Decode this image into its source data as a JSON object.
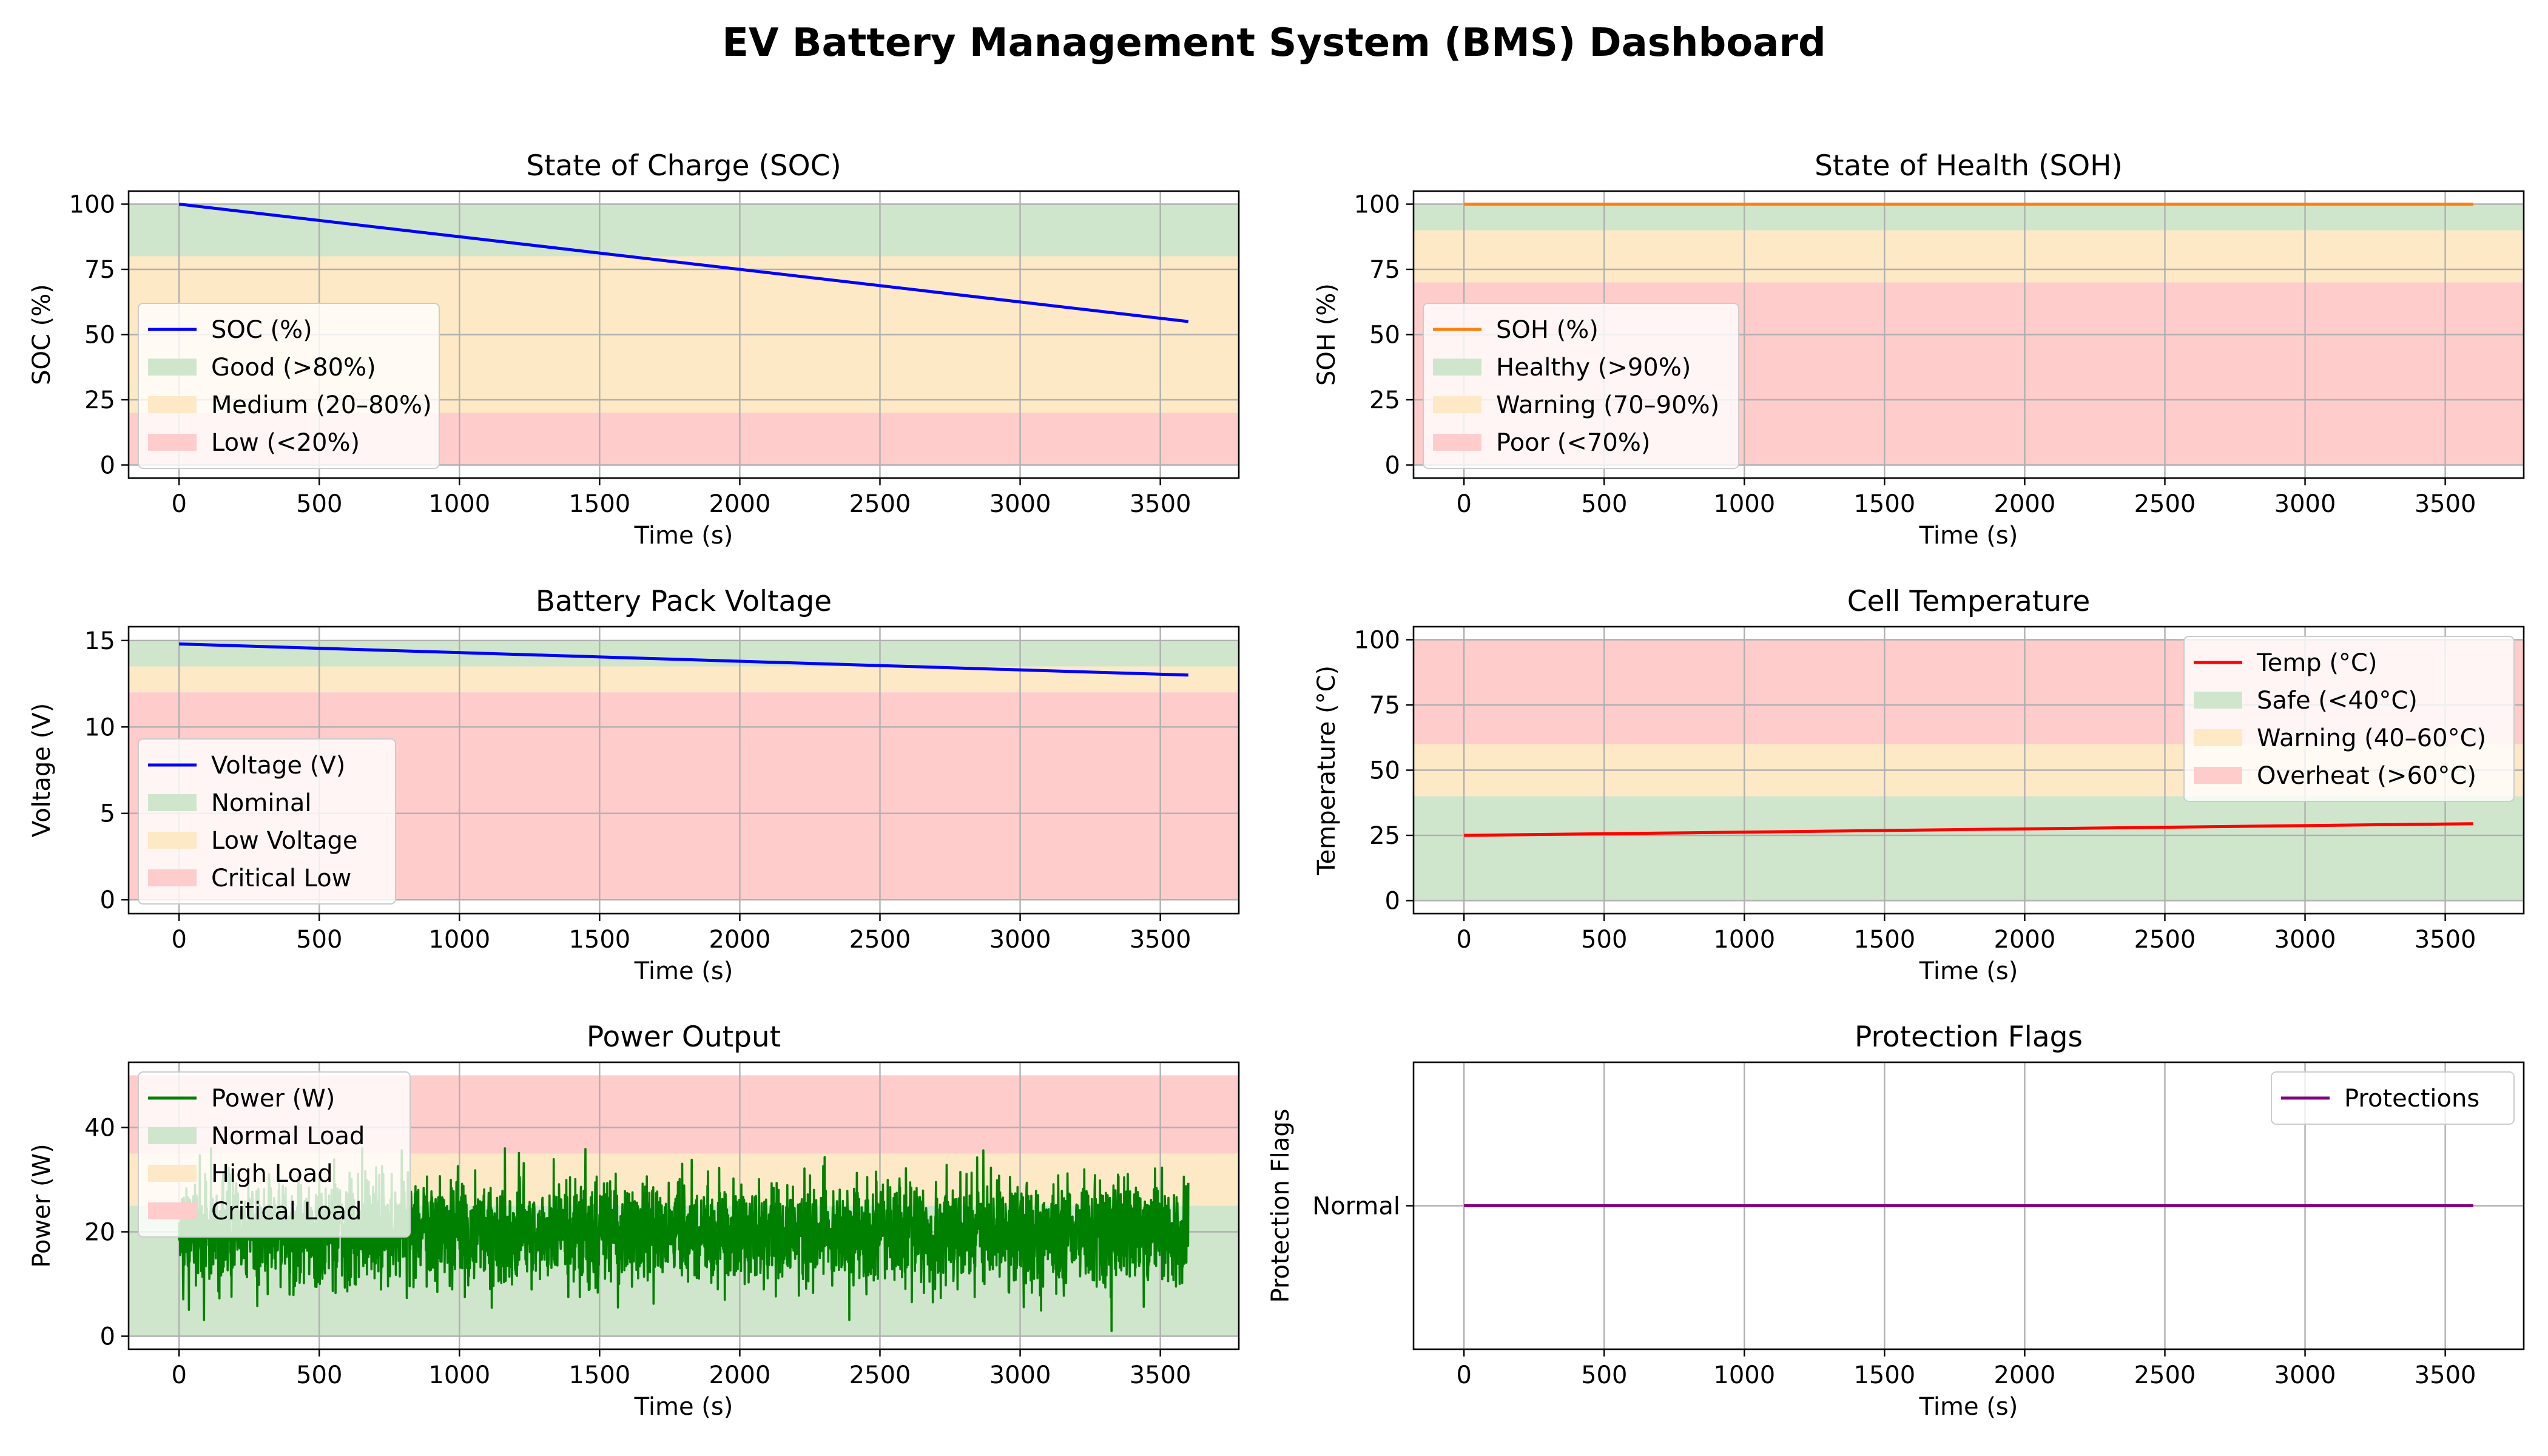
{
  "page": {
    "title": "EV Battery Management System (BMS) Dashboard"
  },
  "chart_data": [
    {
      "id": "soc",
      "type": "line",
      "title": "State of Charge (SOC)",
      "xlabel": "Time (s)",
      "ylabel": "SOC (%)",
      "xlim": [
        -180,
        3780
      ],
      "ylim": [
        -5,
        105
      ],
      "xticks": [
        0,
        500,
        1000,
        1500,
        2000,
        2500,
        3000,
        3500
      ],
      "yticks": [
        0,
        25,
        50,
        75,
        100
      ],
      "grid": true,
      "legend_position": "lower-left",
      "bands": [
        {
          "name": "Good (>80%)",
          "from": 80,
          "to": 100,
          "color": "#cfe6cc"
        },
        {
          "name": "Medium (20–80%)",
          "from": 20,
          "to": 80,
          "color": "#fde9c6"
        },
        {
          "name": "Low (<20%)",
          "from": 0,
          "to": 20,
          "color": "#ffcccc"
        }
      ],
      "series": [
        {
          "name": "SOC (%)",
          "color": "#0000ff",
          "style": "line",
          "x": [
            0,
            3600
          ],
          "y": [
            100,
            55
          ]
        }
      ]
    },
    {
      "id": "soh",
      "type": "line",
      "title": "State of Health (SOH)",
      "xlabel": "Time (s)",
      "ylabel": "SOH (%)",
      "xlim": [
        -180,
        3780
      ],
      "ylim": [
        -5,
        105
      ],
      "xticks": [
        0,
        500,
        1000,
        1500,
        2000,
        2500,
        3000,
        3500
      ],
      "yticks": [
        0,
        25,
        50,
        75,
        100
      ],
      "grid": true,
      "legend_position": "lower-left",
      "bands": [
        {
          "name": "Healthy (>90%)",
          "from": 90,
          "to": 100,
          "color": "#cfe6cc"
        },
        {
          "name": "Warning (70–90%)",
          "from": 70,
          "to": 90,
          "color": "#fde9c6"
        },
        {
          "name": "Poor (<70%)",
          "from": 0,
          "to": 70,
          "color": "#ffcccc"
        }
      ],
      "series": [
        {
          "name": "SOH (%)",
          "color": "#ff7f0e",
          "style": "line",
          "x": [
            0,
            3600
          ],
          "y": [
            100,
            100
          ]
        }
      ]
    },
    {
      "id": "voltage",
      "type": "line",
      "title": "Battery Pack Voltage",
      "xlabel": "Time (s)",
      "ylabel": "Voltage (V)",
      "xlim": [
        -180,
        3780
      ],
      "ylim": [
        -0.8,
        15.8
      ],
      "xticks": [
        0,
        500,
        1000,
        1500,
        2000,
        2500,
        3000,
        3500
      ],
      "yticks": [
        0,
        5,
        10,
        15
      ],
      "grid": true,
      "legend_position": "lower-left",
      "bands": [
        {
          "name": "Nominal",
          "from": 13.5,
          "to": 15,
          "color": "#cfe6cc"
        },
        {
          "name": "Low Voltage",
          "from": 12,
          "to": 13.5,
          "color": "#fde9c6"
        },
        {
          "name": "Critical Low",
          "from": 0,
          "to": 12,
          "color": "#ffcccc"
        }
      ],
      "series": [
        {
          "name": "Voltage (V)",
          "color": "#0000ff",
          "style": "line",
          "x": [
            0,
            3600
          ],
          "y": [
            14.8,
            13.0
          ]
        }
      ]
    },
    {
      "id": "temperature",
      "type": "line",
      "title": "Cell Temperature",
      "xlabel": "Time (s)",
      "ylabel": "Temperature (°C)",
      "xlim": [
        -180,
        3780
      ],
      "ylim": [
        -5,
        105
      ],
      "xticks": [
        0,
        500,
        1000,
        1500,
        2000,
        2500,
        3000,
        3500
      ],
      "yticks": [
        0,
        25,
        50,
        75,
        100
      ],
      "grid": true,
      "legend_position": "upper-right",
      "bands": [
        {
          "name": "Safe (<40°C)",
          "from": 0,
          "to": 40,
          "color": "#cfe6cc"
        },
        {
          "name": "Warning (40–60°C)",
          "from": 40,
          "to": 60,
          "color": "#fde9c6"
        },
        {
          "name": "Overheat (>60°C)",
          "from": 60,
          "to": 100,
          "color": "#ffcccc"
        }
      ],
      "series": [
        {
          "name": "Temp (°C)",
          "color": "#ff0000",
          "style": "line",
          "x": [
            0,
            3600
          ],
          "y": [
            25,
            29.5
          ]
        }
      ]
    },
    {
      "id": "power",
      "type": "line",
      "title": "Power Output",
      "xlabel": "Time (s)",
      "ylabel": "Power (W)",
      "xlim": [
        -180,
        3780
      ],
      "ylim": [
        -2.5,
        52.5
      ],
      "xticks": [
        0,
        500,
        1000,
        1500,
        2000,
        2500,
        3000,
        3500
      ],
      "yticks": [
        0,
        20,
        40
      ],
      "grid": true,
      "legend_position": "upper-left",
      "bands": [
        {
          "name": "Normal Load",
          "from": 0,
          "to": 25,
          "color": "#cfe6cc"
        },
        {
          "name": "High Load",
          "from": 25,
          "to": 35,
          "color": "#fde9c6"
        },
        {
          "name": "Critical Load",
          "from": 35,
          "to": 50,
          "color": "#ffcccc"
        }
      ],
      "series": [
        {
          "name": "Power (W)",
          "color": "#008000",
          "style": "noise",
          "x_range": [
            0,
            3600
          ],
          "mean": 20,
          "std": 5,
          "min": 1,
          "max": 36,
          "samples": 3600
        }
      ]
    },
    {
      "id": "protection",
      "type": "line",
      "title": "Protection Flags",
      "xlabel": "Time (s)",
      "ylabel": "Protection Flags",
      "xlim": [
        -180,
        3780
      ],
      "ylim": [
        -1,
        1
      ],
      "xticks": [
        0,
        500,
        1000,
        1500,
        2000,
        2500,
        3000,
        3500
      ],
      "yticks": [
        0
      ],
      "ytick_labels": [
        "Normal"
      ],
      "grid": true,
      "legend_position": "upper-right",
      "bands": [],
      "series": [
        {
          "name": "Protections",
          "color": "#800080",
          "style": "line",
          "x": [
            0,
            3600
          ],
          "y": [
            0,
            0
          ]
        }
      ]
    }
  ]
}
